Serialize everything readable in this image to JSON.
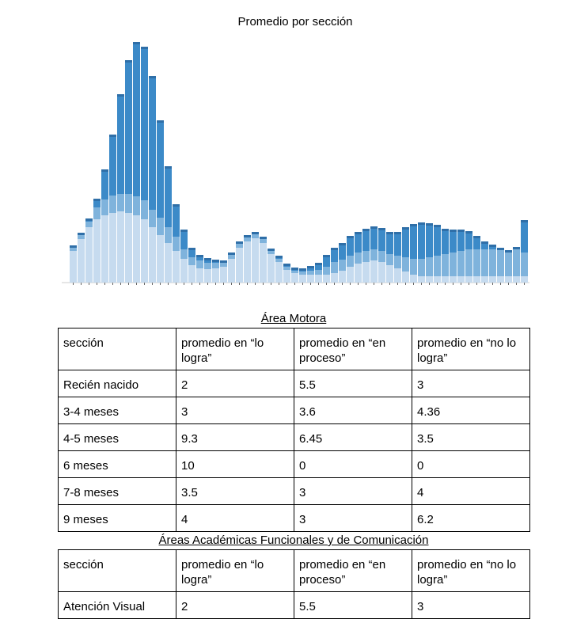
{
  "chart_data": {
    "type": "bar",
    "stacked": true,
    "title": "Promedio por sección",
    "categories": [
      null,
      null,
      null,
      null,
      null,
      null,
      null,
      null,
      null,
      null,
      null,
      null,
      null,
      null,
      null,
      null,
      null,
      null,
      null,
      null,
      null,
      null,
      null,
      null,
      null,
      null,
      null,
      null,
      null,
      null,
      null,
      null,
      null,
      null,
      null,
      null,
      null,
      null,
      null,
      null,
      null,
      null,
      null,
      null,
      null,
      null,
      null,
      null,
      null,
      null,
      null,
      null,
      null,
      null,
      null,
      null,
      null,
      null
    ],
    "ylim": [
      0,
      310
    ],
    "series": [
      {
        "color": "#c6dbef",
        "values": [
          40,
          55,
          70,
          80,
          85,
          88,
          90,
          88,
          85,
          80,
          70,
          60,
          50,
          40,
          30,
          22,
          18,
          17,
          18,
          20,
          30,
          44,
          52,
          56,
          50,
          36,
          26,
          16,
          12,
          10,
          10,
          10,
          10,
          12,
          15,
          20,
          24,
          26,
          28,
          26,
          22,
          18,
          14,
          10,
          8,
          8,
          8,
          8,
          8,
          8,
          8,
          8,
          8,
          8,
          8,
          8,
          8,
          8
        ]
      },
      {
        "color": "#7fb3dc",
        "values": [
          4,
          5,
          7,
          15,
          20,
          22,
          22,
          24,
          24,
          24,
          22,
          22,
          20,
          18,
          12,
          10,
          10,
          8,
          7,
          6,
          5,
          5,
          5,
          5,
          5,
          4,
          4,
          4,
          3,
          4,
          5,
          6,
          10,
          14,
          14,
          14,
          14,
          14,
          14,
          14,
          14,
          16,
          18,
          20,
          22,
          24,
          26,
          28,
          30,
          32,
          34,
          34,
          34,
          34,
          33,
          30,
          34,
          30
        ]
      },
      {
        "color": "#3c8ac8",
        "values": [
          3,
          3,
          4,
          11,
          38,
          77,
          126,
          169,
          195,
          194,
          169,
          123,
          77,
          41,
          25,
          12,
          7,
          6,
          4,
          2,
          3,
          3,
          3,
          3,
          3,
          3,
          4,
          4,
          4,
          4,
          6,
          9,
          15,
          18,
          21,
          25,
          26,
          28,
          29,
          29,
          28,
          30,
          38,
          44,
          46,
          43,
          39,
          32,
          29,
          27,
          23,
          17,
          10,
          6,
          3,
          3,
          3,
          41
        ]
      }
    ]
  },
  "tables": [
    {
      "title": "Área Motora",
      "header": [
        "sección",
        "promedio en “lo logra”",
        "promedio en “en proceso”",
        "promedio en “no lo logra”"
      ],
      "rows": [
        [
          "Recién nacido",
          "2",
          "5.5",
          "3"
        ],
        [
          "3-4 meses",
          "3",
          "3.6",
          "4.36"
        ],
        [
          "4-5 meses",
          "9.3",
          "6.45",
          "3.5"
        ],
        [
          "6 meses",
          "10",
          "0",
          "0"
        ],
        [
          "7-8 meses",
          "3.5",
          "3",
          "4"
        ],
        [
          "9 meses",
          "4",
          "3",
          "6.2"
        ]
      ]
    },
    {
      "title": "Áreas Académicas Funcionales y de Comunicación",
      "header": [
        "sección",
        "promedio en “lo logra”",
        "promedio en “en proceso”",
        "promedio en “no lo logra”"
      ],
      "rows": [
        [
          "Atención Visual",
          "2",
          "5.5",
          "3"
        ]
      ]
    }
  ]
}
